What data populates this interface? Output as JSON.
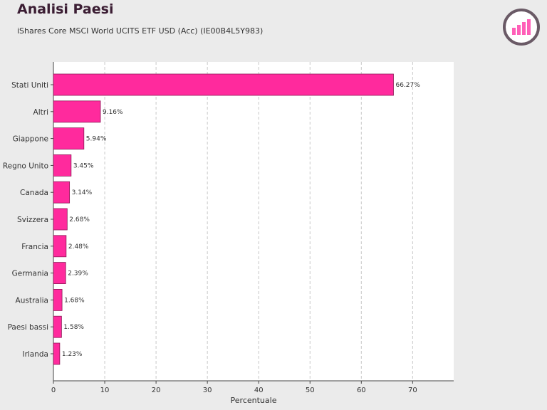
{
  "header": {
    "title": "Analisi Paesi",
    "subtitle": "iShares Core MSCI World UCITS ETF USD (Acc) (IE00B4L5Y983)"
  },
  "colors": {
    "bar_fill": "#ff2a9d",
    "bar_stroke": "#8a1a55",
    "logo_ring": "#6a5a66",
    "logo_bars": "#ff5fb8"
  },
  "chart_data": {
    "type": "bar",
    "orientation": "horizontal",
    "categories": [
      "Stati Uniti",
      "Altri",
      "Giappone",
      "Regno Unito",
      "Canada",
      "Svizzera",
      "Francia",
      "Germania",
      "Australia",
      "Paesi bassi",
      "Irlanda"
    ],
    "values": [
      66.27,
      9.16,
      5.94,
      3.45,
      3.14,
      2.68,
      2.48,
      2.39,
      1.68,
      1.58,
      1.23
    ],
    "value_labels": [
      "66.27%",
      "9.16%",
      "5.94%",
      "3.45%",
      "3.14%",
      "2.68%",
      "2.48%",
      "2.39%",
      "1.68%",
      "1.58%",
      "1.23%"
    ],
    "xlabel": "Percentuale",
    "xlim": [
      0,
      78
    ],
    "xticks": [
      0,
      10,
      20,
      30,
      40,
      50,
      60,
      70
    ],
    "grid": "vertical-dashed",
    "legend": "none"
  }
}
